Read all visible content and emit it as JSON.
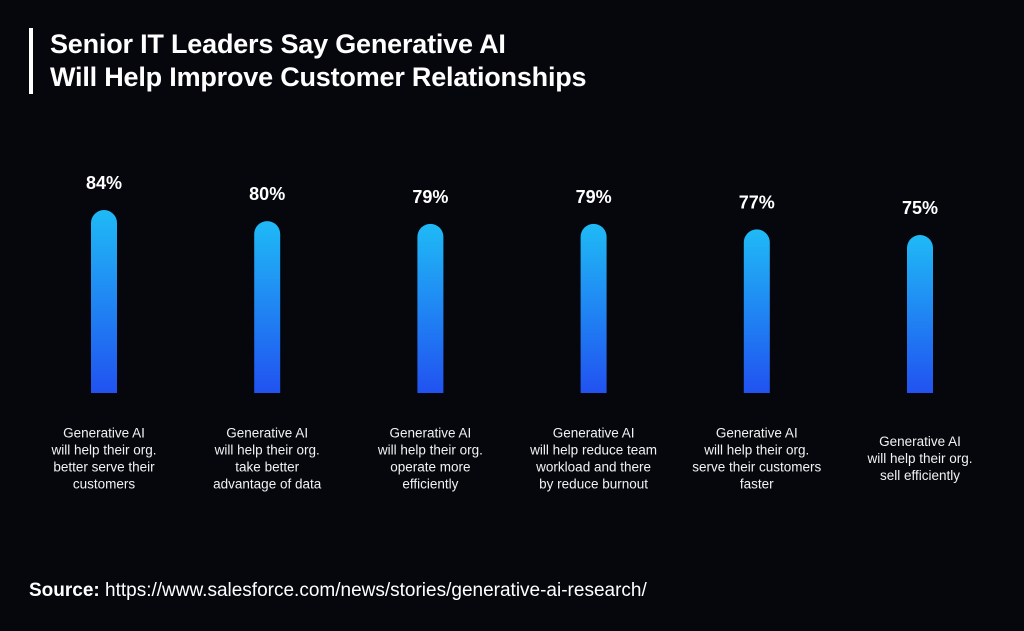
{
  "chart_data": {
    "type": "bar",
    "title": [
      "Senior IT Leaders Say Generative AI",
      "Will Help Improve Customer Relationships"
    ],
    "categories": [
      [
        "Generative AI",
        "will help their org.",
        "better serve their",
        "customers"
      ],
      [
        "Generative AI",
        "will help their org.",
        "take better",
        "advantage of data"
      ],
      [
        "Generative AI",
        "will help their org.",
        "operate more",
        "efficiently"
      ],
      [
        "Generative AI",
        "will help reduce team",
        "workload and there",
        "by reduce burnout"
      ],
      [
        "Generative AI",
        "will help their org.",
        "serve their customers",
        "faster"
      ],
      [
        "Generative AI",
        "will help their org.",
        "sell efficiently"
      ]
    ],
    "values": [
      84,
      80,
      79,
      79,
      77,
      75
    ],
    "value_labels": [
      "84%",
      "80%",
      "79%",
      "79%",
      "77%",
      "75%"
    ],
    "xlabel": "",
    "ylabel": "",
    "ylim": [
      18,
      84
    ],
    "grid": false,
    "colors": {
      "bar_top": "#1fbaf6",
      "bar_bottom": "#2152f0",
      "background": "#05070d",
      "text": "#ffffff"
    }
  },
  "source": {
    "label": "Source:",
    "url": "https://www.salesforce.com/news/stories/generative-ai-research/"
  }
}
